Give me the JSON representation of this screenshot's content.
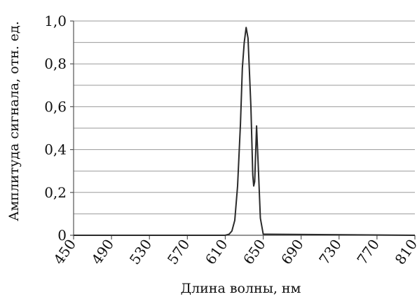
{
  "chart_data": {
    "type": "line",
    "title": "",
    "xlabel": "Длина волны, нм",
    "ylabel": "Амплитуда сигнала, отн. ед.",
    "xlim": [
      450,
      810
    ],
    "ylim": [
      0,
      1.0
    ],
    "grid": true,
    "legend": "none",
    "x_ticks": [
      450,
      490,
      530,
      570,
      610,
      650,
      690,
      730,
      770,
      810
    ],
    "x_tick_labels": [
      "450",
      "490",
      "530",
      "570",
      "610",
      "650",
      "690",
      "730",
      "770",
      "810"
    ],
    "y_ticks": [
      0,
      0.2,
      0.4,
      0.6,
      0.8,
      1.0
    ],
    "y_tick_labels": [
      "0",
      "0,2",
      "0,4",
      "0,6",
      "0,8",
      "1,0"
    ],
    "y_minor_grid": [
      0.1,
      0.3,
      0.5,
      0.7,
      0.9
    ],
    "series": [
      {
        "x": [
          450,
          610,
          614,
          617,
          620,
          623,
          626,
          628,
          630,
          632,
          634,
          637,
          639,
          640,
          641,
          643,
          645,
          647,
          650,
          810
        ],
        "y": [
          0,
          0,
          0.005,
          0.02,
          0.07,
          0.23,
          0.52,
          0.78,
          0.9,
          0.97,
          0.92,
          0.6,
          0.28,
          0.23,
          0.25,
          0.51,
          0.3,
          0.08,
          0.005,
          0
        ]
      }
    ],
    "color": "#2a2a2a"
  }
}
